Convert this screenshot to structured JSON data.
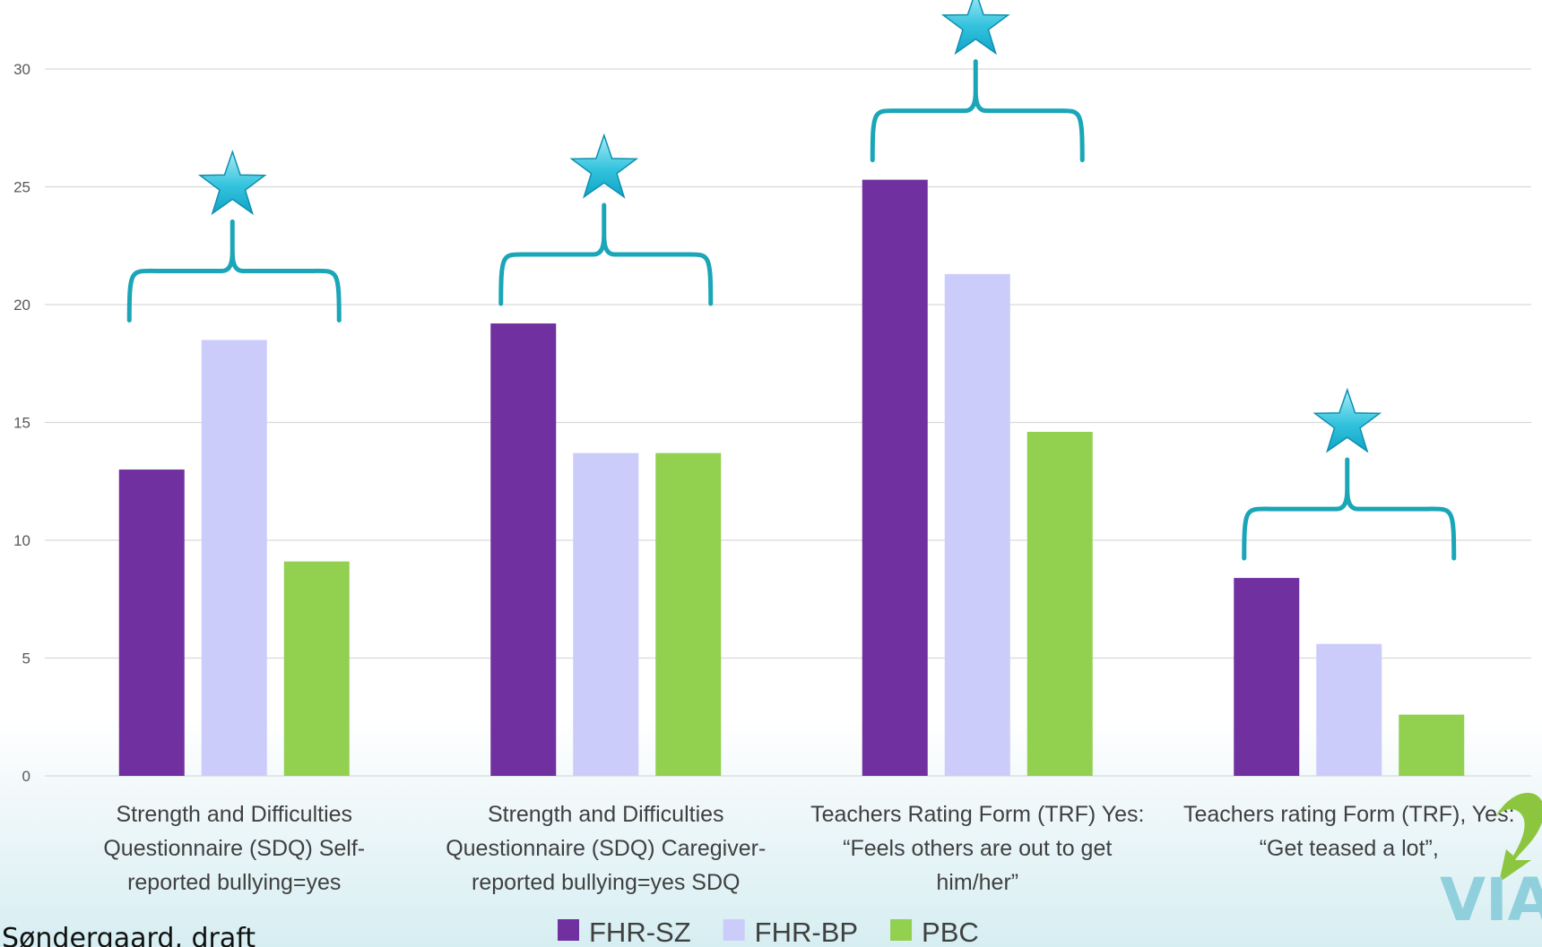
{
  "chart_data": {
    "type": "bar",
    "categories": [
      [
        "Strength and Difficulties",
        "Questionnaire (SDQ) Self-",
        "reported bullying=yes"
      ],
      [
        "Strength and Difficulties",
        "Questionnaire (SDQ) Caregiver-",
        "reported bullying=yes SDQ"
      ],
      [
        "Teachers Rating Form (TRF) Yes:",
        "“Feels others are out to get",
        "him/her”"
      ],
      [
        "Teachers rating Form (TRF), Yes:",
        "“Get teased a lot”,"
      ]
    ],
    "series": [
      {
        "name": "FHR-SZ",
        "color": "#7030a0",
        "values": [
          13.0,
          19.2,
          25.3,
          8.4
        ]
      },
      {
        "name": "FHR-BP",
        "color": "#ccccfb",
        "values": [
          18.5,
          13.7,
          21.3,
          5.6
        ]
      },
      {
        "name": "PBC",
        "color": "#92d050",
        "values": [
          9.1,
          13.7,
          14.6,
          2.6
        ]
      }
    ],
    "ylim": [
      0,
      30
    ],
    "yticks": [
      0,
      5,
      10,
      15,
      20,
      25,
      30
    ],
    "grid": true,
    "legend_position": "bottom",
    "significance_markers": [
      true,
      true,
      true,
      true
    ],
    "marker_color": "#1aa6b7"
  },
  "footer": {
    "text": "Søndergaard, draft"
  },
  "logo": {
    "text": "VIA"
  }
}
